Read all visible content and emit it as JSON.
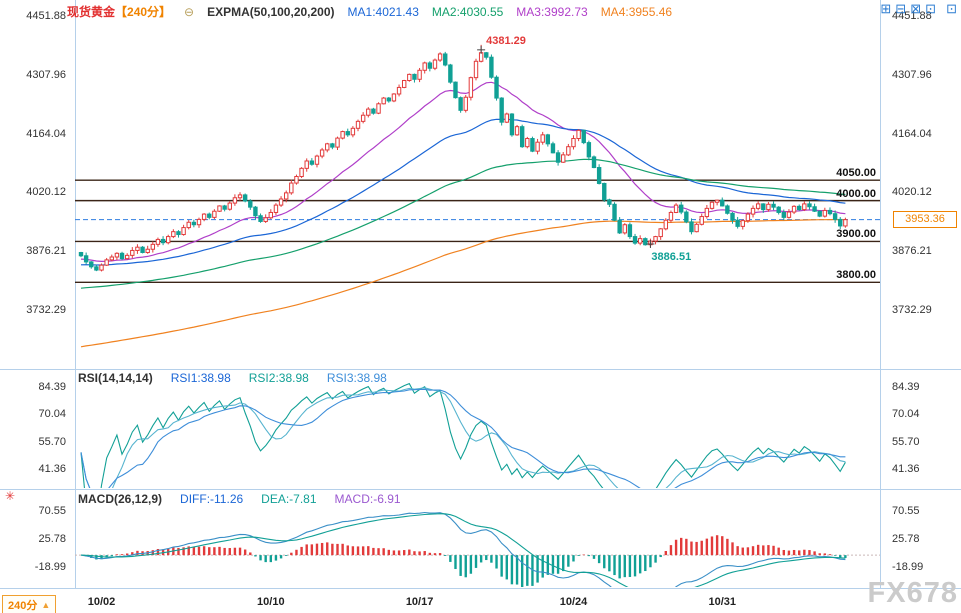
{
  "header": {
    "title": "现货黄金",
    "title_color": "#e23131",
    "period": "【240分】",
    "period_color": "#f08300",
    "collapse_icon": "⊖",
    "indicator_label": "EXPMA(50,100,20,200)",
    "ma_values": [
      {
        "label": "MA1:4021.43",
        "color": "#1b66d6"
      },
      {
        "label": "MA2:4030.55",
        "color": "#15a06c"
      },
      {
        "label": "MA3:3992.73",
        "color": "#b03fc9"
      },
      {
        "label": "MA4:3955.46",
        "color": "#f08220"
      }
    ],
    "window_icons": [
      "⊞",
      "⊟",
      "⊠",
      "⊡"
    ],
    "corner_icon": "⊡"
  },
  "rsi_panel": {
    "label": "RSI(14,14,14)",
    "values": [
      {
        "label": "RSI1:38.98",
        "color": "#1b66d6"
      },
      {
        "label": "RSI2:38.98",
        "color": "#12a096"
      },
      {
        "label": "RSI3:38.98",
        "color": "#3e8ed9"
      }
    ]
  },
  "macd_panel": {
    "label": "MACD(26,12,9)",
    "values": [
      {
        "label": "DIFF:-11.26",
        "color": "#1b66d6"
      },
      {
        "label": "DEA:-7.81",
        "color": "#12a096"
      },
      {
        "label": "MACD:-6.91",
        "color": "#9b59d0"
      }
    ],
    "side_icon": "✳"
  },
  "footer": {
    "period_label": "240分",
    "period_arrow": "▲",
    "watermark": "FX678"
  },
  "chart_data": {
    "type": "candlestick",
    "title": "现货黄金 240分",
    "price_ticks": [
      4451.88,
      4307.96,
      4164.04,
      4020.12,
      3876.21,
      3732.29
    ],
    "level_lines": [
      4050.0,
      4000.0,
      3900.0,
      3800.0
    ],
    "current_price": 3953.36,
    "high_annotation": {
      "index": 78,
      "price": 4381.29
    },
    "low_annotation": {
      "index": 111,
      "price": 3886.51
    },
    "x_ticks": [
      {
        "label": "10/02",
        "index": 4
      },
      {
        "label": "10/10",
        "index": 37
      },
      {
        "label": "10/17",
        "index": 66
      },
      {
        "label": "10/24",
        "index": 96
      },
      {
        "label": "10/31",
        "index": 125
      }
    ],
    "up_color": "#e23a3a",
    "down_color": "#10a095",
    "closes": [
      3865,
      3850,
      3838,
      3830,
      3842,
      3855,
      3862,
      3871,
      3858,
      3866,
      3878,
      3886,
      3873,
      3881,
      3893,
      3905,
      3897,
      3912,
      3924,
      3917,
      3934,
      3947,
      3941,
      3954,
      3967,
      3959,
      3974,
      3987,
      3979,
      3994,
      4007,
      4014,
      3999,
      3984,
      3963,
      3949,
      3958,
      3971,
      3989,
      4004,
      4019,
      4043,
      4059,
      4079,
      4097,
      4089,
      4109,
      4124,
      4139,
      4131,
      4153,
      4169,
      4161,
      4177,
      4194,
      4209,
      4224,
      4214,
      4237,
      4251,
      4244,
      4261,
      4277,
      4294,
      4309,
      4297,
      4319,
      4337,
      4324,
      4344,
      4359,
      4332,
      4290,
      4252,
      4221,
      4253,
      4301,
      4341,
      4362,
      4351,
      4302,
      4251,
      4192,
      4212,
      4161,
      4181,
      4132,
      4152,
      4121,
      4143,
      4161,
      4139,
      4117,
      4094,
      4112,
      4132,
      4152,
      4172,
      4142,
      4107,
      4081,
      4042,
      4002,
      3991,
      3952,
      3921,
      3941,
      3912,
      3896,
      3907,
      3892,
      3901,
      3912,
      3931,
      3952,
      3971,
      3989,
      3972,
      3948,
      3924,
      3942,
      3961,
      3981,
      3996,
      4001,
      3987,
      3969,
      3952,
      3937,
      3951,
      3967,
      3981,
      3992,
      3978,
      3991,
      3984,
      3971,
      3959,
      3972,
      3986,
      3978,
      3992,
      3985,
      3974,
      3962,
      3976,
      3968,
      3954,
      3938,
      3953.36
    ],
    "emas": [
      {
        "period": 20,
        "seed": 3856,
        "color": "#b03fc9"
      },
      {
        "period": 50,
        "seed": 3842,
        "color": "#1b66d6"
      },
      {
        "period": 100,
        "seed": 3784,
        "color": "#15a06c"
      },
      {
        "period": 200,
        "seed": 3640,
        "color": "#f08220"
      }
    ],
    "rsi_ticks": [
      84.39,
      70.04,
      55.7,
      41.36
    ],
    "rsi_period": 14,
    "rsi_colors": [
      "#12a096",
      "#57b4cf",
      "#3e8ed9"
    ],
    "macd_ticks": [
      70.55,
      25.78,
      -18.99
    ],
    "macd_params": {
      "slow": 26,
      "fast": 12,
      "signal": 9
    },
    "diff_color": "#3a8fc7",
    "dea_color": "#12a096"
  }
}
